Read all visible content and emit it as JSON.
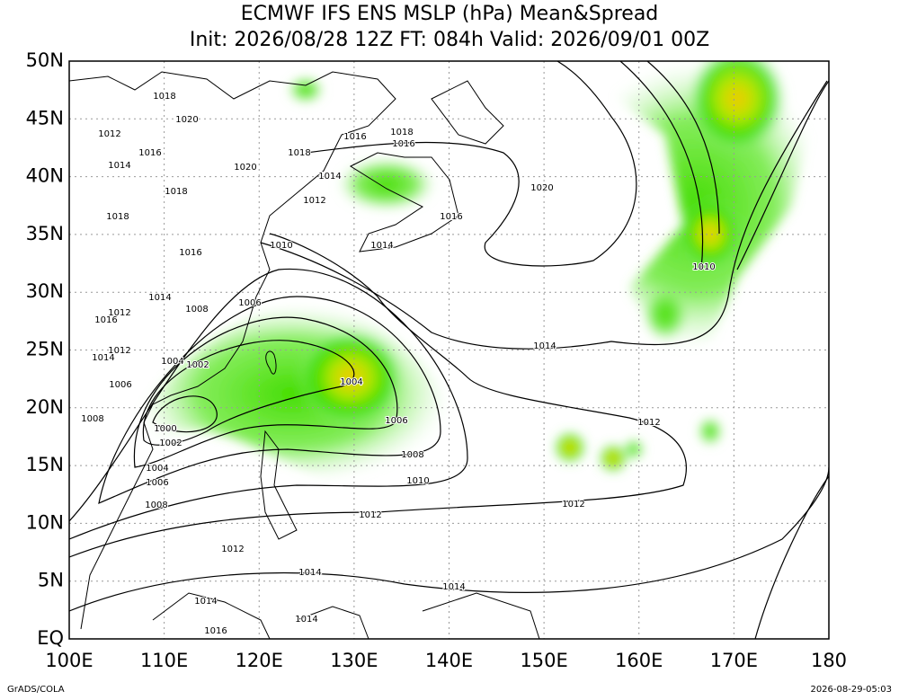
{
  "header": {
    "title": "ECMWF IFS ENS MSLP (hPa) Mean&Spread",
    "subtitle": "Init: 2026/08/28 12Z  FT: 084h  Valid: 2026/09/01 00Z"
  },
  "map": {
    "lon_ticks": [
      {
        "value": 100,
        "label": "100E"
      },
      {
        "value": 110,
        "label": "110E"
      },
      {
        "value": 120,
        "label": "120E"
      },
      {
        "value": 130,
        "label": "130E"
      },
      {
        "value": 140,
        "label": "140E"
      },
      {
        "value": 150,
        "label": "150E"
      },
      {
        "value": 160,
        "label": "160E"
      },
      {
        "value": 170,
        "label": "170E"
      },
      {
        "value": 180,
        "label": "180"
      }
    ],
    "lat_ticks": [
      {
        "value": 0,
        "label": "EQ"
      },
      {
        "value": 5,
        "label": "5N"
      },
      {
        "value": 10,
        "label": "10N"
      },
      {
        "value": 15,
        "label": "15N"
      },
      {
        "value": 20,
        "label": "20N"
      },
      {
        "value": 25,
        "label": "25N"
      },
      {
        "value": 30,
        "label": "30N"
      },
      {
        "value": 35,
        "label": "35N"
      },
      {
        "value": 40,
        "label": "40N"
      },
      {
        "value": 45,
        "label": "45N"
      },
      {
        "value": 50,
        "label": "50N"
      }
    ],
    "lon_range": [
      100,
      180
    ],
    "lat_range": [
      0,
      50
    ],
    "contour_labels": [
      "1018",
      "1020",
      "1012",
      "1016",
      "1014",
      "1018",
      "1020",
      "1016",
      "1018",
      "1016",
      "1014",
      "1018",
      "1012",
      "1018",
      "1016",
      "1020",
      "1014",
      "1010",
      "1016",
      "1010",
      "1014",
      "1006",
      "1008",
      "1016",
      "1012",
      "1014",
      "1012",
      "1014",
      "1004",
      "1002",
      "1004",
      "1006",
      "1006",
      "1008",
      "1012",
      "1000",
      "1002",
      "1008",
      "1004",
      "1010",
      "1006",
      "1008",
      "1012",
      "1012",
      "1012",
      "1014",
      "1014",
      "1014",
      "1014",
      "1016"
    ]
  },
  "footer": {
    "left": "GrADS/COLA",
    "right": "2026-08-29-05:03"
  }
}
